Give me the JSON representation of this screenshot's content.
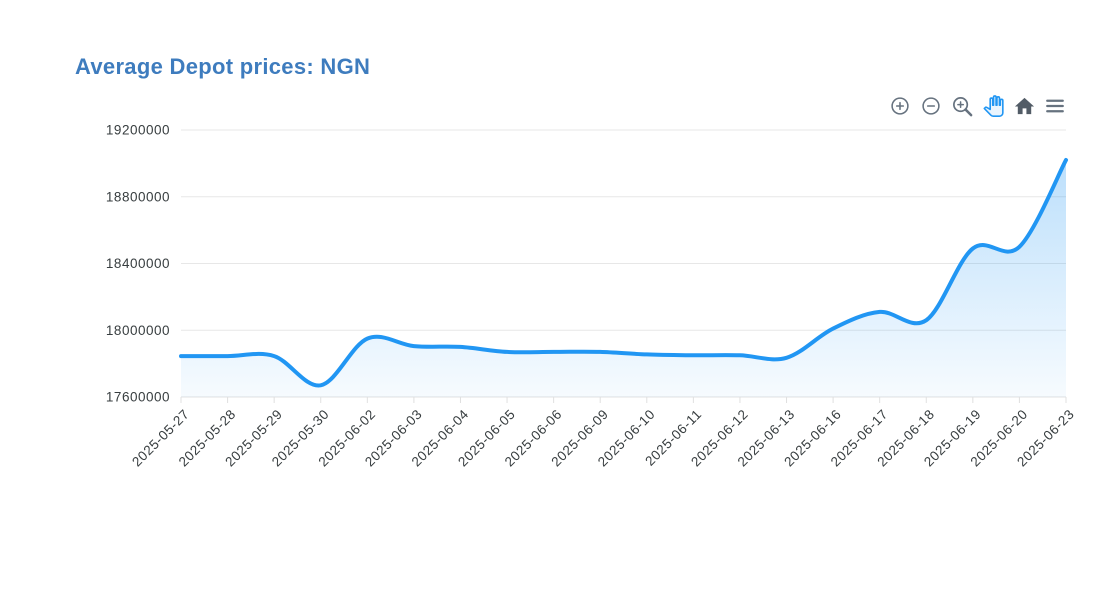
{
  "page": {
    "background": "#ffffff"
  },
  "header": {
    "title": "Average Depot prices: NGN",
    "title_color": "#3e7cbe"
  },
  "toolbar": {
    "icon_color": "#66727f",
    "active_color": "#2196f3",
    "icons": [
      {
        "name": "zoom-in-icon",
        "label": "Zoom In",
        "active": false
      },
      {
        "name": "zoom-out-icon",
        "label": "Zoom Out",
        "active": false
      },
      {
        "name": "selection-zoom-icon",
        "label": "Selection Zoom",
        "active": false
      },
      {
        "name": "pan-icon",
        "label": "Panning",
        "active": true
      },
      {
        "name": "home-icon",
        "label": "Reset Zoom",
        "active": false
      },
      {
        "name": "menu-icon",
        "label": "Menu",
        "active": false
      }
    ]
  },
  "chart_data": {
    "type": "area",
    "title": "Average Depot prices: NGN",
    "xlabel": "",
    "ylabel": "",
    "curve": "smooth",
    "grid": true,
    "legend": "none",
    "categories": [
      "2025-05-27",
      "2025-05-28",
      "2025-05-29",
      "2025-05-30",
      "2025-06-02",
      "2025-06-03",
      "2025-06-04",
      "2025-06-05",
      "2025-06-06",
      "2025-06-09",
      "2025-06-10",
      "2025-06-11",
      "2025-06-12",
      "2025-06-13",
      "2025-06-16",
      "2025-06-17",
      "2025-06-18",
      "2025-06-19",
      "2025-06-20",
      "2025-06-23"
    ],
    "values": [
      17845000,
      17845000,
      17845000,
      17670000,
      17950000,
      17905000,
      17900000,
      17870000,
      17870000,
      17870000,
      17855000,
      17850000,
      17850000,
      17835000,
      18010000,
      18110000,
      18060000,
      18490000,
      18500000,
      19020000
    ],
    "ylim": [
      17600000,
      19200000
    ],
    "yticks": [
      17600000,
      18000000,
      18400000,
      18800000,
      19200000
    ],
    "ytick_labels": [
      "17600000",
      "18000000",
      "18400000",
      "18800000",
      "19200000"
    ],
    "line_color": "#2196f3",
    "line_width": 4,
    "fill_gradient_top": "rgba(33,150,243,0.30)",
    "fill_gradient_bottom": "rgba(33,150,243,0.04)",
    "grid_color": "#e7e7e7",
    "axis_color": "#e0e0e0",
    "label_color": "#373d3f"
  }
}
